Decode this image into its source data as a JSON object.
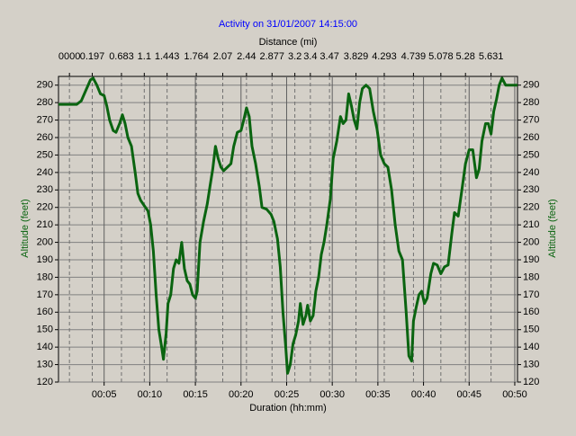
{
  "chart_data": {
    "type": "line",
    "title": "Activity on 31/01/2007 14:15:00",
    "x_label": "Duration (hh:mm)",
    "x2_label": "Distance (mi)",
    "y_label": "Altitude (feet)",
    "xlim": [
      0,
      50.3
    ],
    "ylim": [
      120,
      295
    ],
    "xticks": [
      {
        "value": 5,
        "label": "00:05"
      },
      {
        "value": 10,
        "label": "00:10"
      },
      {
        "value": 15,
        "label": "00:15"
      },
      {
        "value": 20,
        "label": "00:20"
      },
      {
        "value": 25,
        "label": "00:25"
      },
      {
        "value": 30,
        "label": "00:30"
      },
      {
        "value": 35,
        "label": "00:35"
      },
      {
        "value": 40,
        "label": "00:40"
      },
      {
        "value": 45,
        "label": "00:45"
      },
      {
        "value": 50,
        "label": "00:50"
      }
    ],
    "x2ticks": [
      {
        "value": 1.2,
        "label": "0000"
      },
      {
        "value": 3.7,
        "label": "0.197"
      },
      {
        "value": 6.9,
        "label": "0.683"
      },
      {
        "value": 9.4,
        "label": "1.1"
      },
      {
        "value": 11.9,
        "label": "1.443"
      },
      {
        "value": 15.1,
        "label": "1.764"
      },
      {
        "value": 18.0,
        "label": "2.07"
      },
      {
        "value": 20.6,
        "label": "2.44"
      },
      {
        "value": 23.4,
        "label": "2.877"
      },
      {
        "value": 25.9,
        "label": "3.2"
      },
      {
        "value": 27.6,
        "label": "3.4"
      },
      {
        "value": 29.7,
        "label": "3.47"
      },
      {
        "value": 32.6,
        "label": "3.829"
      },
      {
        "value": 35.7,
        "label": "4.293"
      },
      {
        "value": 38.9,
        "label": "4.739"
      },
      {
        "value": 41.9,
        "label": "5.078"
      },
      {
        "value": 44.6,
        "label": "5.28"
      },
      {
        "value": 47.4,
        "label": "5.631"
      }
    ],
    "yticks": [
      120,
      130,
      140,
      150,
      160,
      170,
      180,
      190,
      200,
      210,
      220,
      230,
      240,
      250,
      260,
      270,
      280,
      290
    ],
    "grid": true,
    "x": [
      0,
      2,
      2.5,
      3,
      3.5,
      3.8,
      4.2,
      4.6,
      5.0,
      5.3,
      5.6,
      6.0,
      6.3,
      6.7,
      7.0,
      7.3,
      7.6,
      8.0,
      8.4,
      8.7,
      9.0,
      9.4,
      9.8,
      10.1,
      10.4,
      10.7,
      11.0,
      11.3,
      11.5,
      11.8,
      12.0,
      12.3,
      12.6,
      12.9,
      13.2,
      13.5,
      13.8,
      14.1,
      14.4,
      14.7,
      15.0,
      15.2,
      15.5,
      15.9,
      16.3,
      16.6,
      16.9,
      17.2,
      17.5,
      17.8,
      18.1,
      18.5,
      18.9,
      19.2,
      19.6,
      20.0,
      20.3,
      20.6,
      20.9,
      21.2,
      21.6,
      22.0,
      22.3,
      22.8,
      23.3,
      23.6,
      24.0,
      24.3,
      24.6,
      24.9,
      25.1,
      25.4,
      25.7,
      26.0,
      26.3,
      26.5,
      26.8,
      27.1,
      27.3,
      27.6,
      27.9,
      28.2,
      28.5,
      28.8,
      29.1,
      29.4,
      29.8,
      30.1,
      30.5,
      30.9,
      31.2,
      31.5,
      31.8,
      32.1,
      32.4,
      32.7,
      33.0,
      33.3,
      33.7,
      34.1,
      34.5,
      34.9,
      35.3,
      35.7,
      36.1,
      36.5,
      36.9,
      37.3,
      37.7,
      38.1,
      38.4,
      38.7,
      38.9,
      39.2,
      39.5,
      39.8,
      40.1,
      40.4,
      40.8,
      41.1,
      41.5,
      41.9,
      42.3,
      42.7,
      43.1,
      43.4,
      43.8,
      44.2,
      44.6,
      45.0,
      45.4,
      45.8,
      46.1,
      46.4,
      46.8,
      47.1,
      47.4,
      47.7,
      48.0,
      48.3,
      48.6,
      49.0,
      49.5,
      50.3
    ],
    "series": [
      {
        "name": "Altitude",
        "color": "#0a6410",
        "values": [
          279,
          279,
          281,
          287,
          293,
          294,
          290,
          285,
          284,
          278,
          270,
          264,
          263,
          268,
          273,
          268,
          260,
          255,
          240,
          228,
          224,
          221,
          218,
          210,
          195,
          170,
          150,
          140,
          133,
          148,
          165,
          170,
          185,
          190,
          188,
          200,
          185,
          178,
          176,
          170,
          168,
          172,
          200,
          212,
          222,
          232,
          242,
          255,
          248,
          243,
          241,
          243,
          245,
          255,
          263,
          264,
          270,
          277,
          272,
          255,
          245,
          232,
          220,
          219,
          216,
          212,
          202,
          186,
          160,
          140,
          125,
          130,
          142,
          147,
          155,
          165,
          153,
          158,
          164,
          155,
          158,
          172,
          180,
          193,
          200,
          210,
          225,
          248,
          258,
          272,
          268,
          270,
          285,
          278,
          270,
          265,
          280,
          288,
          290,
          288,
          275,
          265,
          250,
          245,
          243,
          230,
          210,
          195,
          190,
          160,
          135,
          132,
          155,
          163,
          170,
          172,
          165,
          168,
          182,
          188,
          187,
          182,
          186,
          187,
          205,
          217,
          215,
          230,
          245,
          253,
          253,
          237,
          242,
          258,
          268,
          268,
          262,
          275,
          282,
          290,
          294,
          290,
          290,
          290
        ]
      }
    ]
  }
}
